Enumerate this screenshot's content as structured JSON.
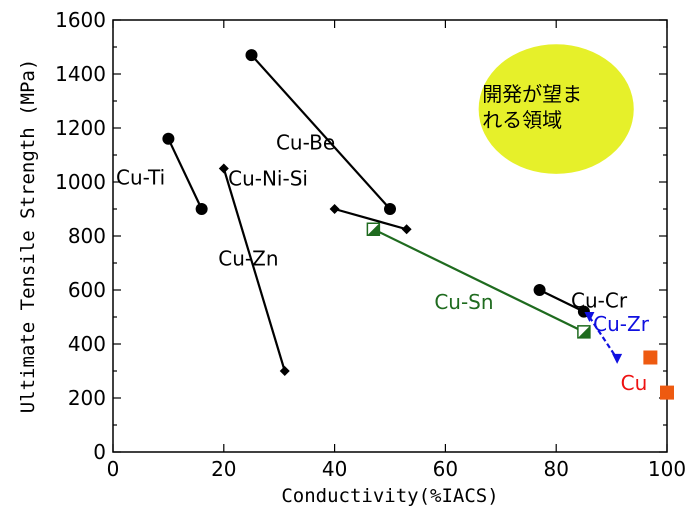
{
  "chart_data": {
    "type": "scatter",
    "xlabel": "Conductivity(%IACS)",
    "ylabel": "Ultimate Tensile Strength (MPa)",
    "xlim": [
      0,
      100
    ],
    "ylim": [
      0,
      1600
    ],
    "xticks": [
      0,
      20,
      40,
      60,
      80,
      100
    ],
    "yticks": [
      0,
      200,
      400,
      600,
      800,
      1000,
      1200,
      1400,
      1600
    ],
    "grid": false,
    "series": [
      {
        "name": "Cu-Be",
        "color": "#000000",
        "marker": "circle",
        "line": "solid",
        "points": [
          [
            25,
            1470
          ],
          [
            50,
            900
          ]
        ]
      },
      {
        "name": "Cu-Ti",
        "color": "#000000",
        "marker": "circle",
        "line": "solid",
        "points": [
          [
            10,
            1160
          ],
          [
            16,
            900
          ]
        ]
      },
      {
        "name": "Cu-Zn",
        "color": "#000000",
        "marker": "diamond",
        "line": "solid",
        "points": [
          [
            20,
            1050
          ],
          [
            31,
            300
          ]
        ]
      },
      {
        "name": "Cu-Ni-Si",
        "color": "#000000",
        "marker": "diamond",
        "line": "solid",
        "points": [
          [
            40,
            900
          ],
          [
            53,
            825
          ]
        ]
      },
      {
        "name": "Cu-Sn",
        "color": "#1f6b1f",
        "marker": "square-half",
        "line": "solid",
        "points": [
          [
            47,
            825
          ],
          [
            85,
            445
          ]
        ]
      },
      {
        "name": "Cu-Cr",
        "color": "#000000",
        "marker": "circle",
        "line": "solid",
        "points": [
          [
            77,
            600
          ],
          [
            85,
            520
          ]
        ]
      },
      {
        "name": "Cu-Zr",
        "color": "#1010e0",
        "marker": "triangle-down",
        "line": "dashed",
        "points": [
          [
            86,
            500
          ],
          [
            91,
            345
          ]
        ]
      },
      {
        "name": "Cu",
        "color": "#ee5a10",
        "marker": "square",
        "line": "none",
        "points": [
          [
            97,
            350
          ],
          [
            100,
            220
          ]
        ]
      }
    ],
    "annotations": [
      {
        "text": "開発が望まれる領域",
        "lines": [
          "開発が望ま",
          "れる領域"
        ],
        "shape": "ellipse",
        "fill": "#e6f02a",
        "center": [
          80,
          1270
        ],
        "radii": [
          14,
          240
        ]
      }
    ]
  }
}
